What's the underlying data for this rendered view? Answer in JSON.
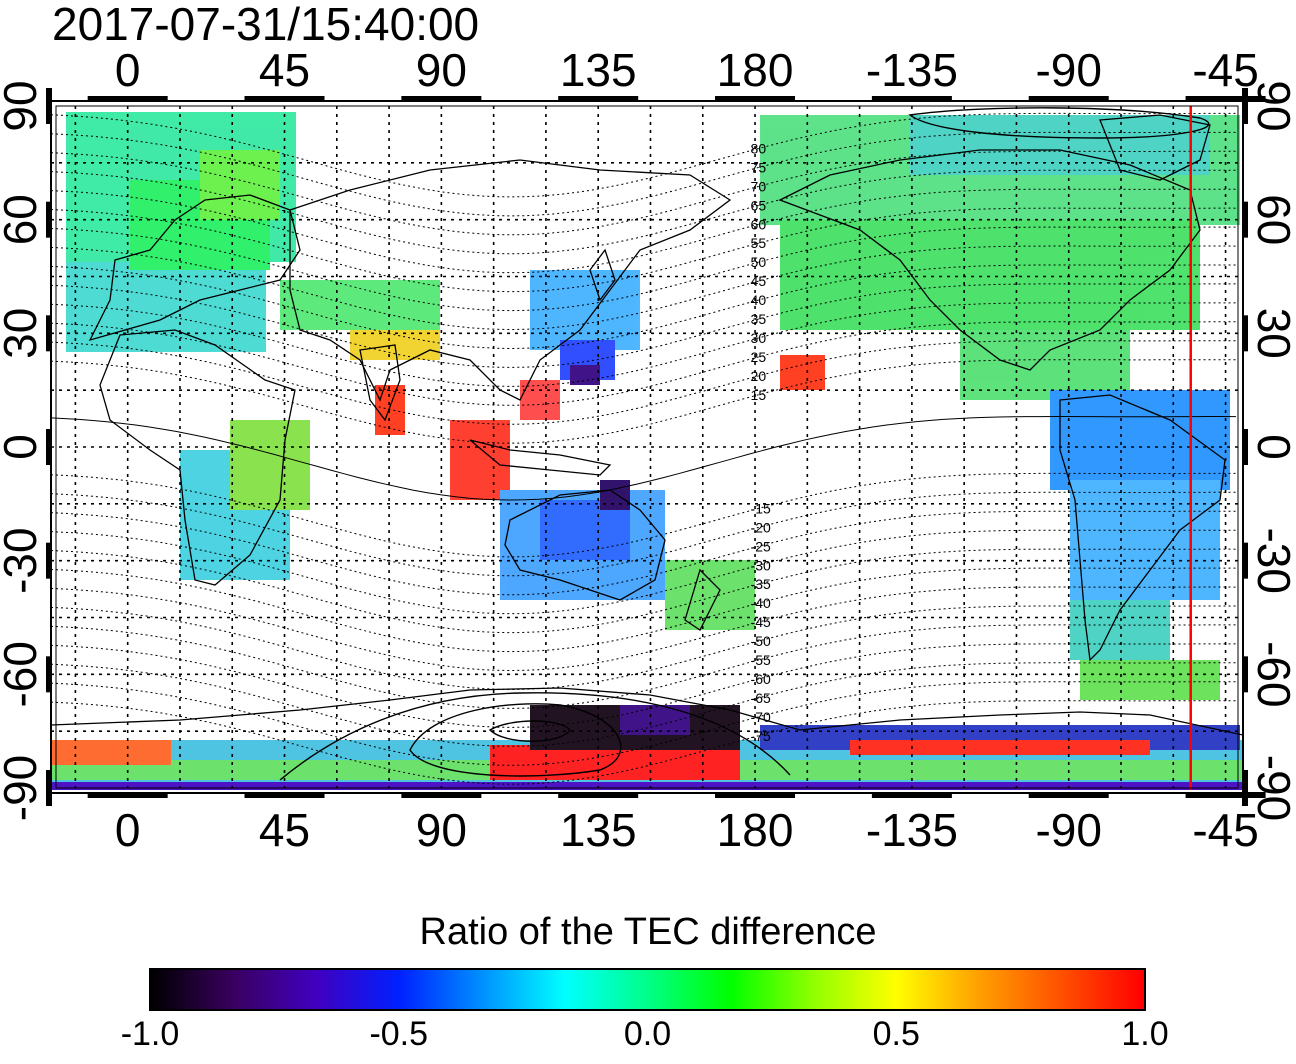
{
  "title": "2017-07-31/15:40:00",
  "map": {
    "projection": "equirectangular",
    "lon_range": [
      -22,
      320
    ],
    "lat_range": [
      -90,
      90
    ],
    "grid": true,
    "top_axis_labels": [
      "0",
      "45",
      "90",
      "135",
      "180",
      "-135",
      "-90",
      "-45"
    ],
    "bottom_axis_labels": [
      "0",
      "45",
      "90",
      "135",
      "180",
      "-135",
      "-90",
      "-45"
    ],
    "left_axis_labels": [
      "90",
      "60",
      "30",
      "0",
      "-30",
      "-60",
      "-90"
    ],
    "right_axis_labels": [
      "90",
      "60",
      "30",
      "0",
      "-30",
      "-60",
      "-90"
    ],
    "axis_label_lons": [
      0,
      45,
      90,
      135,
      180,
      225,
      270,
      315
    ],
    "axis_label_lats": [
      90,
      60,
      30,
      0,
      -30,
      -60,
      -90
    ],
    "magnetic_latitude_labels": [
      "80",
      "75",
      "70",
      "65",
      "60",
      "55",
      "50",
      "45",
      "40",
      "35",
      "30",
      "25",
      "20",
      "15",
      "-15",
      "-20",
      "-25",
      "-30",
      "-35",
      "-40",
      "-45",
      "-50",
      "-55",
      "-60",
      "-65",
      "-70",
      "-75"
    ],
    "magnetic_latitude_values": [
      80,
      75,
      70,
      65,
      60,
      55,
      50,
      45,
      40,
      35,
      30,
      25,
      20,
      15,
      -15,
      -20,
      -25,
      -30,
      -35,
      -40,
      -45,
      -50,
      -55,
      -60,
      -65,
      -70,
      -75
    ],
    "terminator_marker_lon": -55,
    "marker_color": "#ff0000"
  },
  "colorbar": {
    "title": "Ratio of the TEC difference",
    "range": [
      -1.0,
      1.0
    ],
    "tick_labels": [
      "-1.0",
      "-0.5",
      "0.0",
      "0.5",
      "1.0"
    ],
    "tick_values": [
      -1.0,
      -0.5,
      0.0,
      0.5,
      1.0
    ],
    "colors": [
      "#000000",
      "#3a0060",
      "#4000c0",
      "#0020ff",
      "#0090ff",
      "#00ffff",
      "#00ff88",
      "#00ff00",
      "#90ff00",
      "#ffff00",
      "#ffa000",
      "#ff5000",
      "#ff0000"
    ]
  }
}
